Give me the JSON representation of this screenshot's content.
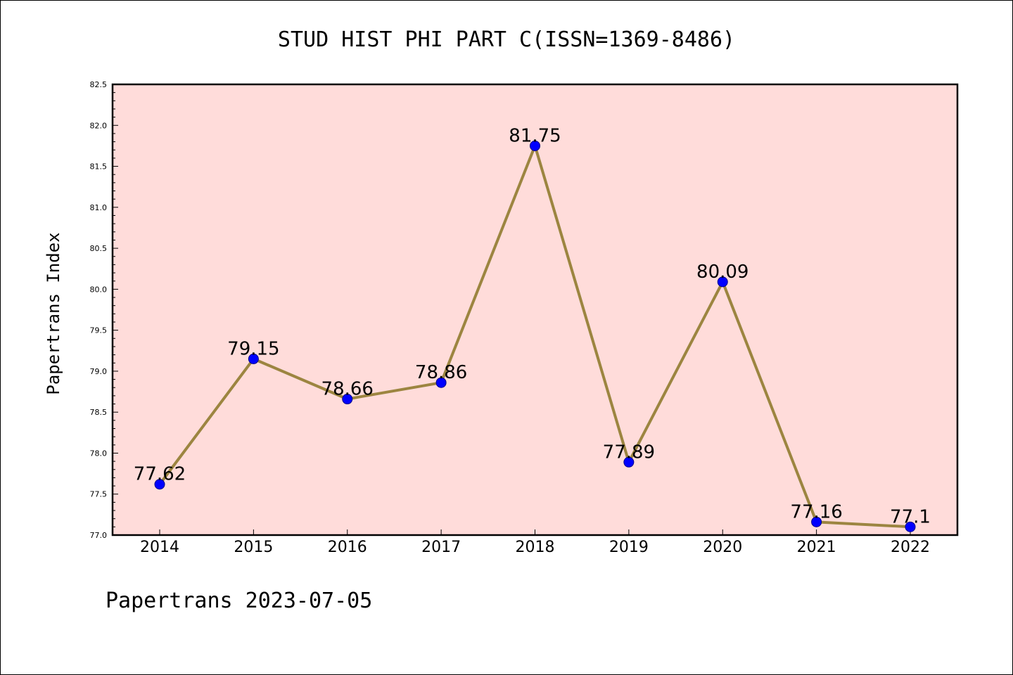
{
  "chart_data": {
    "type": "line",
    "title": "STUD HIST PHI PART C(ISSN=1369-8486)",
    "xlabel": "",
    "ylabel": "Papertrans Index",
    "categories": [
      "2014",
      "2015",
      "2016",
      "2017",
      "2018",
      "2019",
      "2020",
      "2021",
      "2022"
    ],
    "values": [
      77.62,
      79.15,
      78.66,
      78.86,
      81.75,
      77.89,
      80.09,
      77.16,
      77.1
    ],
    "data_labels": [
      "77.62",
      "79.15",
      "78.66",
      "78.86",
      "81.75",
      "77.89",
      "80.09",
      "77.16",
      "77.1"
    ],
    "ylim": [
      77.0,
      82.5
    ],
    "yticks": [
      "77.0",
      "77.5",
      "78.0",
      "78.5",
      "79.0",
      "79.5",
      "80.0",
      "80.5",
      "81.0",
      "81.5",
      "82.0",
      "82.5"
    ],
    "grid": false,
    "plot_background": "#FFDCDA",
    "line_color": "#9C8540",
    "marker_color": "#0000FF"
  },
  "footer": "Papertrans 2023-07-05"
}
